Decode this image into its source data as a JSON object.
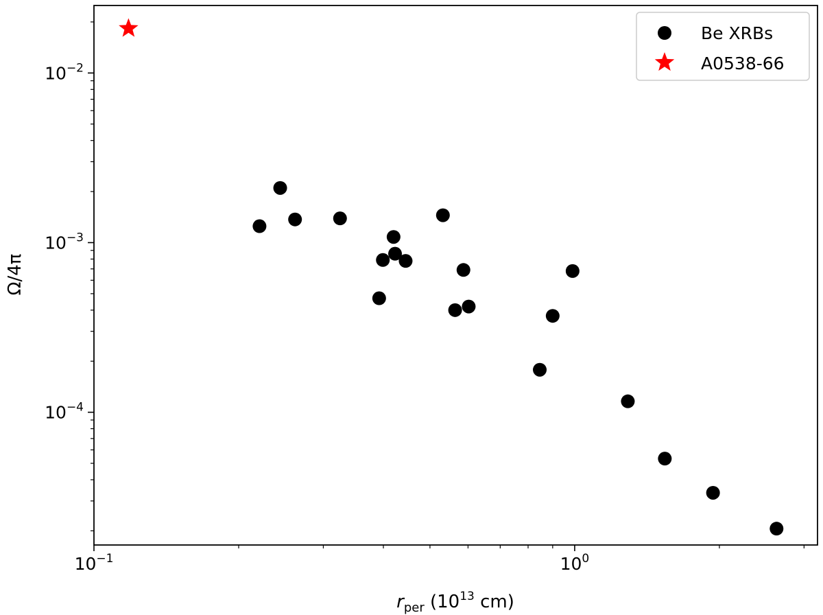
{
  "chart_data": {
    "type": "scatter",
    "x_scale": "log",
    "y_scale": "log",
    "xlim": [
      0.1,
      3.2
    ],
    "ylim": [
      1.65e-05,
      0.025
    ],
    "xlabel": {
      "main": "r",
      "sub": "per",
      "rest_before": " (10",
      "sup": "13",
      "rest_after": " cm)"
    },
    "ylabel": "Ω/4π",
    "x_ticks": [
      {
        "value": 0.1,
        "base": "10",
        "exp": "−1"
      },
      {
        "value": 1,
        "base": "10",
        "exp": "0"
      }
    ],
    "y_ticks": [
      {
        "value": 0.0001,
        "base": "10",
        "exp": "−4"
      },
      {
        "value": 0.001,
        "base": "10",
        "exp": "−3"
      },
      {
        "value": 0.01,
        "base": "10",
        "exp": "−2"
      }
    ],
    "legend_position": "top-right",
    "series": [
      {
        "name": "Be XRBs",
        "marker": "circle",
        "color": "#000000",
        "points": [
          [
            0.221,
            0.00125
          ],
          [
            0.244,
            0.0021
          ],
          [
            0.262,
            0.00137
          ],
          [
            0.325,
            0.00139
          ],
          [
            0.392,
            0.00047
          ],
          [
            0.399,
            0.00079
          ],
          [
            0.42,
            0.00108
          ],
          [
            0.423,
            0.00086
          ],
          [
            0.445,
            0.00078
          ],
          [
            0.532,
            0.00145
          ],
          [
            0.564,
            0.0004
          ],
          [
            0.587,
            0.00069
          ],
          [
            0.602,
            0.00042
          ],
          [
            0.846,
            0.000178
          ],
          [
            0.9,
            0.00037
          ],
          [
            0.99,
            0.00068
          ],
          [
            1.29,
            0.000116
          ],
          [
            1.54,
            5.33e-05
          ],
          [
            1.94,
            3.35e-05
          ],
          [
            2.63,
            2.06e-05
          ]
        ]
      },
      {
        "name": "A0538-66",
        "marker": "star",
        "color": "#ff0000",
        "points": [
          [
            0.118,
            0.0183
          ]
        ]
      }
    ]
  }
}
